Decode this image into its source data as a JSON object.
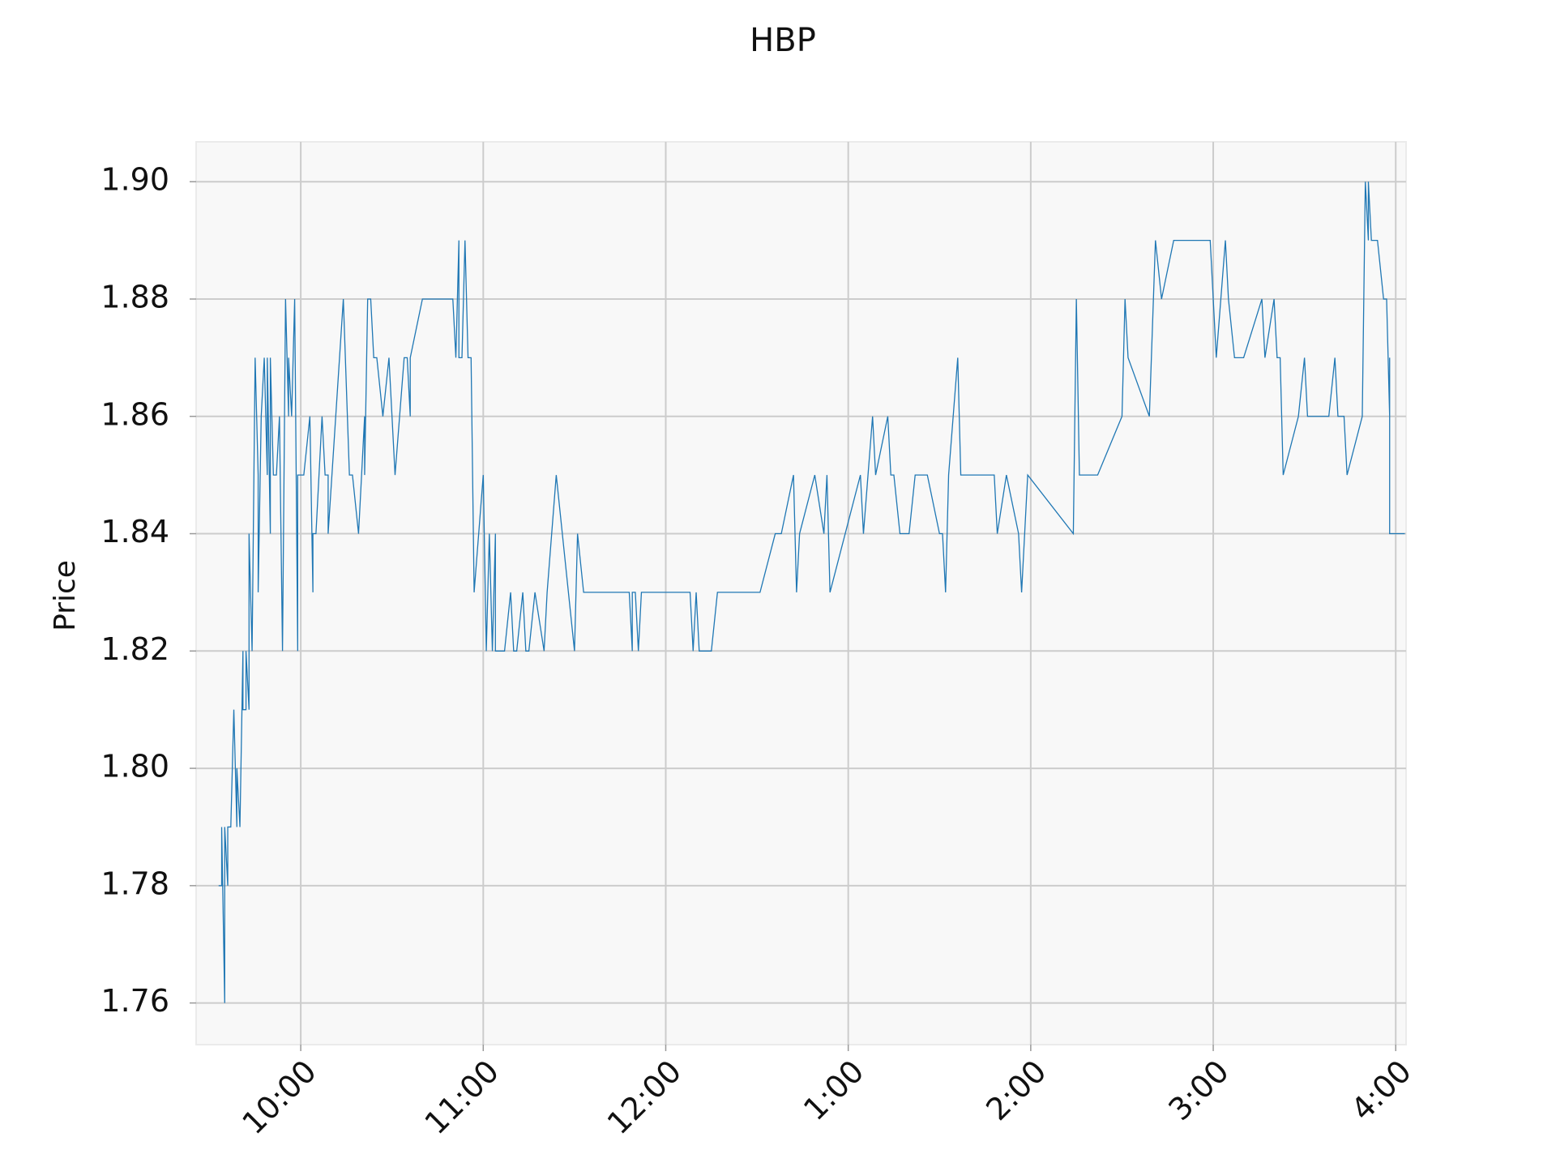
{
  "chart_data": {
    "type": "line",
    "title": "HBP",
    "y_label": "Price",
    "color": "#1f77b4",
    "grid": true,
    "x": [
      573,
      574,
      574,
      575,
      575,
      576,
      576,
      577,
      578,
      579,
      579,
      580,
      581,
      581,
      582,
      582,
      583,
      583,
      584,
      585,
      586,
      586,
      587,
      588,
      589,
      589,
      590,
      590,
      591,
      592,
      593,
      594,
      595,
      596,
      596,
      597,
      598,
      599,
      599,
      601,
      603,
      604,
      604,
      605,
      607,
      608,
      609,
      609,
      614,
      616,
      617,
      619,
      621,
      621,
      622,
      623,
      624,
      625,
      627,
      629,
      631,
      634,
      635,
      636,
      636,
      640,
      650,
      651,
      652,
      652,
      653,
      654,
      655,
      656,
      657,
      660,
      661,
      662,
      663,
      664,
      664,
      667,
      669,
      670,
      671,
      673,
      674,
      675,
      677,
      680,
      681,
      684,
      690,
      691,
      693,
      708,
      709,
      709,
      710,
      711,
      712,
      728,
      729,
      730,
      731,
      735,
      737,
      751,
      756,
      758,
      762,
      763,
      764,
      769,
      772,
      773,
      774,
      784,
      785,
      788,
      789,
      793,
      794,
      795,
      797,
      800,
      802,
      806,
      810,
      811,
      812,
      813,
      813,
      816,
      817,
      828,
      829,
      832,
      836,
      837,
      839,
      854,
      855,
      856,
      862,
      870,
      871,
      872,
      879,
      881,
      883,
      887,
      899,
      901,
      904,
      905,
      907,
      910,
      916,
      917,
      920,
      921,
      922,
      923,
      928,
      930,
      931,
      938,
      940,
      941,
      943,
      944,
      949,
      950,
      951,
      951,
      952,
      954,
      956,
      957,
      958,
      958,
      958,
      963
    ],
    "values": [
      1.78,
      1.78,
      1.79,
      1.76,
      1.79,
      1.78,
      1.79,
      1.79,
      1.81,
      1.79,
      1.8,
      1.79,
      1.82,
      1.81,
      1.81,
      1.82,
      1.81,
      1.84,
      1.82,
      1.87,
      1.85,
      1.83,
      1.86,
      1.87,
      1.85,
      1.87,
      1.84,
      1.87,
      1.85,
      1.85,
      1.86,
      1.82,
      1.88,
      1.86,
      1.87,
      1.86,
      1.88,
      1.82,
      1.85,
      1.85,
      1.86,
      1.83,
      1.84,
      1.84,
      1.86,
      1.85,
      1.85,
      1.84,
      1.88,
      1.85,
      1.85,
      1.84,
      1.86,
      1.85,
      1.88,
      1.88,
      1.87,
      1.87,
      1.86,
      1.87,
      1.85,
      1.87,
      1.87,
      1.86,
      1.87,
      1.88,
      1.88,
      1.87,
      1.89,
      1.87,
      1.87,
      1.89,
      1.87,
      1.87,
      1.83,
      1.85,
      1.82,
      1.84,
      1.82,
      1.84,
      1.82,
      1.82,
      1.83,
      1.82,
      1.82,
      1.83,
      1.82,
      1.82,
      1.83,
      1.82,
      1.83,
      1.85,
      1.82,
      1.84,
      1.83,
      1.83,
      1.82,
      1.83,
      1.83,
      1.82,
      1.83,
      1.83,
      1.82,
      1.83,
      1.82,
      1.82,
      1.83,
      1.83,
      1.84,
      1.84,
      1.85,
      1.83,
      1.84,
      1.85,
      1.84,
      1.85,
      1.83,
      1.85,
      1.84,
      1.86,
      1.85,
      1.86,
      1.85,
      1.85,
      1.84,
      1.84,
      1.85,
      1.85,
      1.84,
      1.84,
      1.83,
      1.85,
      1.85,
      1.87,
      1.85,
      1.85,
      1.84,
      1.85,
      1.84,
      1.83,
      1.85,
      1.84,
      1.88,
      1.85,
      1.85,
      1.86,
      1.88,
      1.87,
      1.86,
      1.89,
      1.88,
      1.89,
      1.89,
      1.87,
      1.89,
      1.88,
      1.87,
      1.87,
      1.88,
      1.87,
      1.88,
      1.87,
      1.87,
      1.85,
      1.86,
      1.87,
      1.86,
      1.86,
      1.87,
      1.86,
      1.86,
      1.85,
      1.86,
      1.9,
      1.89,
      1.9,
      1.89,
      1.89,
      1.88,
      1.88,
      1.86,
      1.87,
      1.84,
      1.84
    ],
    "xlim": [
      565.6,
      963.4
    ],
    "xticks": [
      {
        "value": 600,
        "label": "10:00"
      },
      {
        "value": 660,
        "label": "11:00"
      },
      {
        "value": 720,
        "label": "12:00"
      },
      {
        "value": 780,
        "label": "1:00"
      },
      {
        "value": 840,
        "label": "2:00"
      },
      {
        "value": 900,
        "label": "3:00"
      },
      {
        "value": 960,
        "label": "4:00"
      }
    ],
    "ylim": [
      1.7529,
      1.9068
    ],
    "yticks": [
      1.76,
      1.78,
      {
        "value": 1.8,
        "label": "1.80"
      },
      1.82,
      1.84,
      1.86,
      1.88,
      {
        "value": 1.9,
        "label": "1.90"
      }
    ]
  }
}
